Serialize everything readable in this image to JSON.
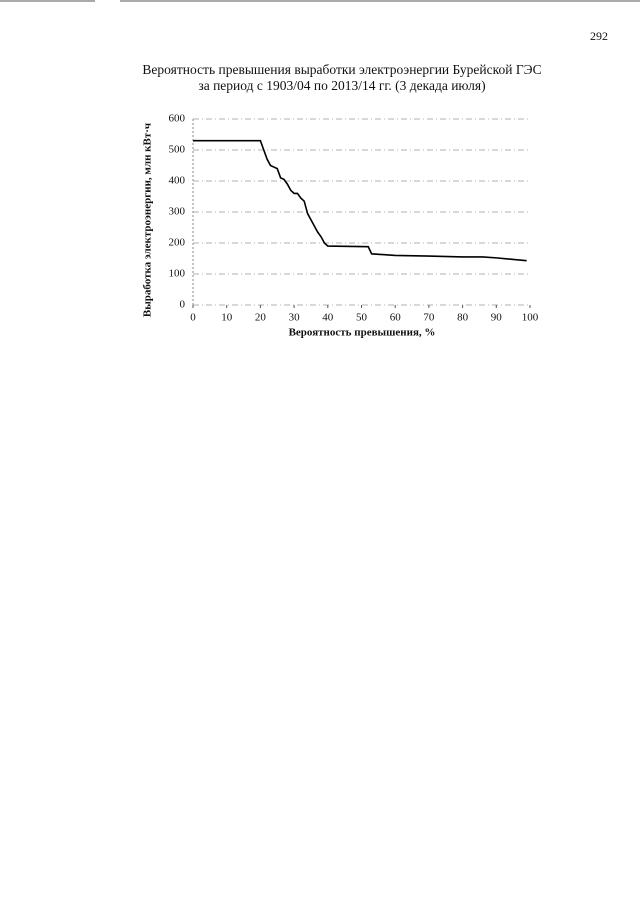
{
  "page_number": "292",
  "chart_data": {
    "type": "line",
    "title": "Вероятность превышения выработки электроэнергии Бурейской ГЭС",
    "subtitle": "за период с 1903/04 по 2013/14 гг. (3 декада июля)",
    "x_label": "Вероятность превышения, %",
    "y_label": "Выработка электроэнергии, млн кВт·ч",
    "x": [
      0,
      20,
      21,
      22,
      23,
      24,
      25,
      26,
      27,
      28,
      29,
      30,
      31,
      32,
      33,
      34,
      35,
      36,
      37,
      38,
      39,
      40,
      52,
      53,
      60,
      70,
      80,
      86,
      90,
      99
    ],
    "values": [
      530,
      530,
      500,
      470,
      450,
      445,
      440,
      410,
      405,
      390,
      370,
      360,
      360,
      345,
      335,
      295,
      275,
      255,
      235,
      220,
      200,
      190,
      188,
      165,
      160,
      158,
      155,
      155,
      152,
      143
    ],
    "color": "#000000",
    "xlim": [
      0,
      100
    ],
    "xticks": [
      0,
      10,
      20,
      30,
      40,
      50,
      60,
      70,
      80,
      90,
      100
    ],
    "ylim": [
      0,
      600
    ],
    "yticks": [
      0,
      100,
      200,
      300,
      400,
      500,
      600
    ],
    "grid": true
  }
}
